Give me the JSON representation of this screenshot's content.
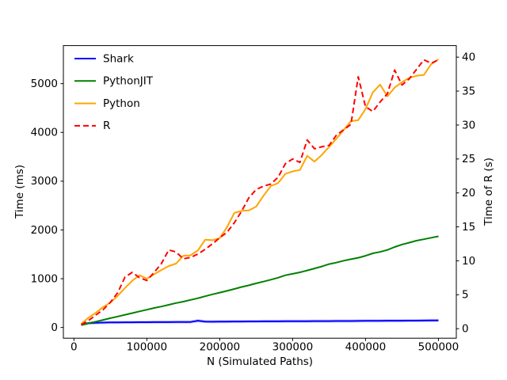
{
  "figure": {
    "background": "#ffffff",
    "spine_color": "#000000",
    "text_color": "#000000"
  },
  "chart_data": {
    "type": "line",
    "title": "",
    "xlabel": "N (Simulated Paths)",
    "ylabel_left": "Time (ms)",
    "ylabel_right": "Time of R (s)",
    "grid": false,
    "legend_position": "upper-left",
    "legend_frame": false,
    "xlim": [
      -14500,
      524500
    ],
    "ylim_left": [
      -220,
      5780
    ],
    "ylim_right": [
      -1.4,
      41.7
    ],
    "xticks": [
      0,
      100000,
      200000,
      300000,
      400000,
      500000
    ],
    "xtick_labels": [
      "0",
      "100000",
      "200000",
      "300000",
      "400000",
      "500000"
    ],
    "yticks_left": [
      0,
      1000,
      2000,
      3000,
      4000,
      5000
    ],
    "ytick_labels_left": [
      "0",
      "1000",
      "2000",
      "3000",
      "4000",
      "5000"
    ],
    "yticks_right": [
      0,
      5,
      10,
      15,
      20,
      25,
      30,
      35,
      40
    ],
    "ytick_labels_right": [
      "0",
      "5",
      "10",
      "15",
      "20",
      "25",
      "30",
      "35",
      "40"
    ],
    "x": [
      10000,
      20000,
      30000,
      40000,
      50000,
      60000,
      70000,
      80000,
      90000,
      100000,
      110000,
      120000,
      130000,
      140000,
      150000,
      160000,
      170000,
      180000,
      190000,
      200000,
      210000,
      220000,
      230000,
      240000,
      250000,
      260000,
      270000,
      280000,
      290000,
      300000,
      310000,
      320000,
      330000,
      340000,
      350000,
      360000,
      370000,
      380000,
      390000,
      400000,
      410000,
      420000,
      430000,
      440000,
      450000,
      460000,
      470000,
      480000,
      490000,
      500000
    ],
    "series": [
      {
        "name": "Shark",
        "color": "#0000ff",
        "halo": "#9090ff",
        "style": "solid",
        "axis": "left",
        "unit": "ms",
        "values": [
          60,
          88,
          96,
          100,
          103,
          105,
          106,
          107,
          108,
          108,
          109,
          110,
          110,
          111,
          112,
          113,
          138,
          121,
          118,
          120,
          121,
          122,
          123,
          124,
          124,
          125,
          126,
          126,
          127,
          128,
          128,
          129,
          130,
          130,
          131,
          132,
          133,
          133,
          134,
          135,
          136,
          137,
          138,
          138,
          139,
          140,
          141,
          142,
          143,
          144
        ]
      },
      {
        "name": "PythonJIT",
        "color": "#008000",
        "style": "solid",
        "axis": "left",
        "unit": "ms",
        "values": [
          50,
          85,
          120,
          155,
          190,
          225,
          260,
          295,
          330,
          365,
          400,
          430,
          465,
          500,
          530,
          565,
          600,
          640,
          680,
          715,
          750,
          790,
          830,
          865,
          905,
          940,
          980,
          1020,
          1070,
          1100,
          1130,
          1170,
          1210,
          1250,
          1300,
          1330,
          1370,
          1400,
          1430,
          1470,
          1520,
          1550,
          1590,
          1650,
          1700,
          1740,
          1780,
          1810,
          1840,
          1870
        ]
      },
      {
        "name": "Python",
        "color": "#ffa500",
        "style": "solid",
        "axis": "left",
        "unit": "ms",
        "values": [
          70,
          200,
          300,
          420,
          510,
          650,
          810,
          960,
          1070,
          1000,
          1090,
          1180,
          1260,
          1310,
          1470,
          1480,
          1580,
          1800,
          1790,
          1830,
          2060,
          2350,
          2390,
          2400,
          2480,
          2700,
          2900,
          2960,
          3150,
          3200,
          3230,
          3520,
          3400,
          3540,
          3700,
          3870,
          4050,
          4230,
          4250,
          4480,
          4820,
          4980,
          4740,
          4920,
          5030,
          5120,
          5160,
          5180,
          5400,
          5500
        ]
      },
      {
        "name": "R",
        "color": "#ff0000",
        "style": "dashed",
        "axis": "right",
        "unit": "s",
        "values": [
          0.6,
          1.2,
          2.0,
          2.8,
          3.9,
          5.3,
          7.6,
          8.3,
          7.5,
          7.1,
          8.3,
          9.6,
          11.6,
          11.3,
          10.3,
          10.5,
          11.0,
          11.7,
          12.5,
          13.4,
          14.2,
          15.6,
          17.3,
          19.3,
          20.5,
          21.0,
          21.3,
          22.3,
          24.3,
          25.0,
          24.5,
          27.8,
          26.5,
          26.8,
          27.0,
          28.5,
          29.3,
          30.1,
          37.1,
          32.7,
          32.0,
          33.4,
          34.6,
          38.1,
          35.9,
          36.8,
          38.2,
          39.6,
          39.1,
          39.6
        ]
      }
    ]
  }
}
